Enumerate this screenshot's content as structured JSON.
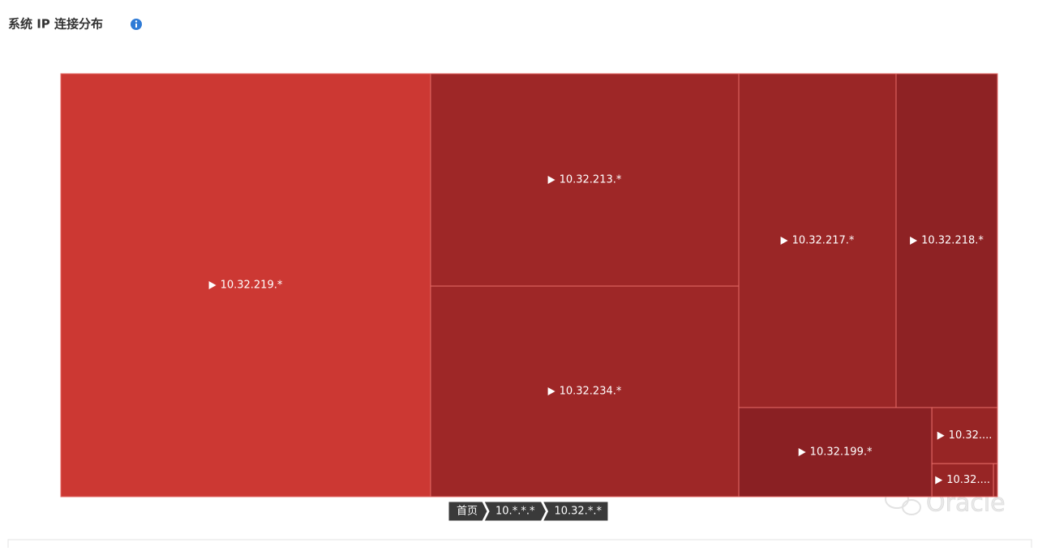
{
  "chart_data": {
    "type": "treemap",
    "title": "系统 IP 连接分布",
    "categories": [
      "10.32.219.*",
      "10.32.213.*",
      "10.32.234.*",
      "10.32.217.*",
      "10.32.218.*",
      "10.32.199.*",
      "10.32....",
      "10.32....",
      null
    ],
    "values": [
      238,
      99.6,
      98.8,
      79.9,
      51.5,
      26.2,
      5.6,
      3.1,
      0.2
    ],
    "colors": [
      "#cc3833",
      "#9e2727",
      "#9e2727",
      "#9a2626",
      "#8e2224",
      "#8a2023",
      "#972525",
      "#972525",
      "#972525"
    ],
    "breadcrumb": [
      "首页",
      "10.*.*.*",
      "10.32.*.*"
    ]
  },
  "watermark": "Oracle"
}
